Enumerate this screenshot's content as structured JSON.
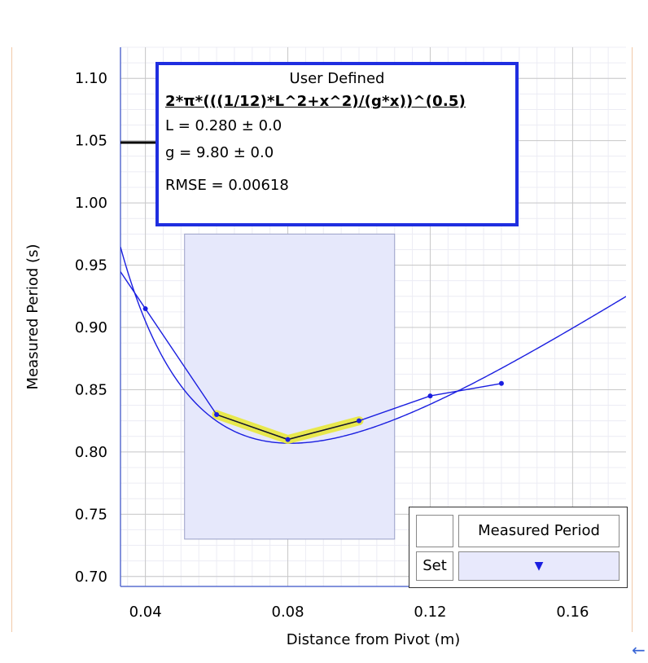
{
  "chart_data": {
    "type": "scatter",
    "xlabel": "Distance from Pivot (m)",
    "ylabel": "Measured Period (s)",
    "xlim": [
      0.033,
      0.175
    ],
    "ylim": [
      0.692,
      1.125
    ],
    "xticks": [
      0.04,
      0.08,
      0.12,
      0.16
    ],
    "xtick_labels": [
      "0.04",
      "0.08",
      "0.12",
      "0.16"
    ],
    "yticks": [
      0.7,
      0.75,
      0.8,
      0.85,
      0.9,
      0.95,
      1.0,
      1.05,
      1.1
    ],
    "ytick_labels": [
      "0.70",
      "0.75",
      "0.80",
      "0.85",
      "0.90",
      "0.95",
      "1.00",
      "1.05",
      "1.10"
    ],
    "grid": true,
    "series": [
      {
        "name": "Measured Period",
        "x": [
          0.04,
          0.06,
          0.08,
          0.1,
          0.12,
          0.14
        ],
        "y": [
          0.915,
          0.83,
          0.81,
          0.825,
          0.845,
          0.855
        ],
        "highlighted_x_range": [
          0.06,
          0.1
        ]
      }
    ],
    "selection_region": {
      "x": [
        0.051,
        0.11
      ],
      "y": [
        0.73,
        0.975
      ]
    },
    "fit": {
      "title": "User Defined",
      "formula": "2*π*(((1/12)*L^2+x^2)/(g*x))^(0.5)",
      "params": [
        {
          "label": "L  = 0.280 ± 0.0",
          "name": "L",
          "value": 0.28
        },
        {
          "label": "g  = 9.80   ± 0.0",
          "name": "g",
          "value": 9.8
        }
      ],
      "rmse_label": "RMSE = 0.00618"
    },
    "legend_placement": "bottom-right"
  },
  "legend": {
    "series_name": "Measured Period",
    "set_label": "Set",
    "dropdown_icon": "▼"
  },
  "colors": {
    "series": "#1a1ee0",
    "highlight": "#e8e83a",
    "selection_fill": "#e6e8fb",
    "selection_stroke": "#9aa0c8",
    "grid_major": "#c8c8c8",
    "grid_minor": "#ececf4"
  },
  "back_icon": "←"
}
